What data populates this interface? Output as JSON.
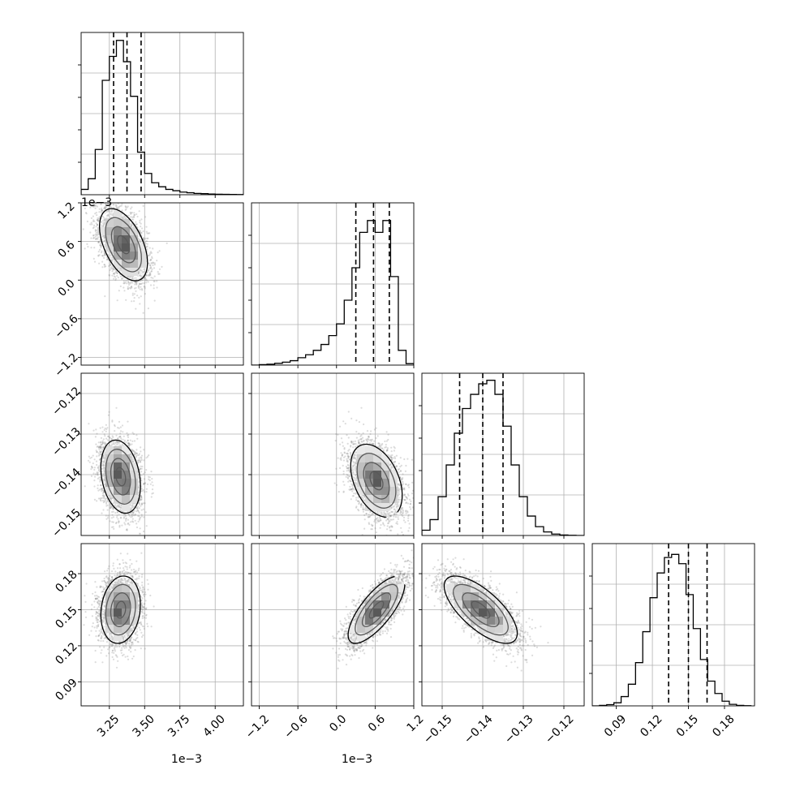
{
  "chart_data": {
    "type": "corner",
    "parameters": [
      {
        "range": [
          0.00305,
          0.0042
        ],
        "ticks": [
          0.00325,
          0.0035,
          0.00375,
          0.004
        ],
        "tick_labels": [
          "3.25",
          "3.50",
          "3.75",
          "4.00"
        ],
        "offset_label": "1e−3",
        "quantiles": [
          0.00328,
          0.003375,
          0.003475
        ],
        "hist_bin_edges": [
          0.00305,
          0.0031,
          0.00315,
          0.0032,
          0.00325,
          0.0033,
          0.00335,
          0.0034,
          0.00345,
          0.0035,
          0.00355,
          0.0036,
          0.00365,
          0.0037,
          0.00375,
          0.0038,
          0.00385,
          0.0039,
          0.00395,
          0.004,
          0.00405,
          0.0041,
          0.00415,
          0.0042
        ],
        "hist_values": [
          0.04,
          0.12,
          0.34,
          0.86,
          1.04,
          1.16,
          1.0,
          0.74,
          0.32,
          0.16,
          0.09,
          0.06,
          0.04,
          0.03,
          0.02,
          0.015,
          0.01,
          0.008,
          0.005,
          0.004,
          0.003,
          0.002,
          0.001
        ],
        "hist_ylim": [
          0,
          1.22
        ]
      },
      {
        "range": [
          -0.00132,
          0.0012
        ],
        "ticks": [
          -0.0012,
          -0.0006,
          0.0,
          0.0006,
          0.0012
        ],
        "tick_labels": [
          "−1.2",
          "−0.6",
          "0.0",
          "0.6",
          "1.2"
        ],
        "offset_label": "1e−3",
        "quantiles": [
          0.0003,
          0.000575,
          0.00082
        ],
        "hist_bin_edges": [
          -0.00132,
          -0.0012,
          -0.00108,
          -0.00096,
          -0.00084,
          -0.00072,
          -0.0006,
          -0.00048,
          -0.00036,
          -0.00024,
          -0.00012,
          0.0,
          0.00012,
          0.00024,
          0.00036,
          0.00048,
          0.0006,
          0.00072,
          0.00084,
          0.00096,
          0.00108,
          0.0012
        ],
        "hist_values": [
          0.0,
          0.003,
          0.006,
          0.012,
          0.02,
          0.03,
          0.05,
          0.07,
          0.1,
          0.14,
          0.2,
          0.28,
          0.44,
          0.66,
          0.9,
          0.98,
          0.9,
          0.98,
          0.6,
          0.1,
          0.01
        ],
        "hist_ylim": [
          0,
          1.1
        ]
      },
      {
        "range": [
          -0.155,
          -0.115
        ],
        "ticks": [
          -0.15,
          -0.14,
          -0.13,
          -0.12
        ],
        "tick_labels": [
          "−0.15",
          "−0.14",
          "−0.13",
          "−0.12"
        ],
        "offset_label": "",
        "quantiles": [
          -0.1457,
          -0.14,
          -0.135
        ],
        "hist_bin_edges": [
          -0.155,
          -0.153,
          -0.151,
          -0.149,
          -0.147,
          -0.145,
          -0.143,
          -0.141,
          -0.139,
          -0.137,
          -0.135,
          -0.133,
          -0.131,
          -0.129,
          -0.127,
          -0.125,
          -0.123,
          -0.121,
          -0.119,
          -0.117,
          -0.115
        ],
        "hist_values": [
          0.03,
          0.09,
          0.22,
          0.4,
          0.58,
          0.72,
          0.8,
          0.86,
          0.88,
          0.8,
          0.62,
          0.4,
          0.22,
          0.11,
          0.05,
          0.02,
          0.008,
          0.003,
          0.001,
          0.0
        ],
        "hist_ylim": [
          0,
          0.92
        ]
      },
      {
        "range": [
          0.07,
          0.205
        ],
        "ticks": [
          0.09,
          0.12,
          0.15,
          0.18
        ],
        "tick_labels": [
          "0.09",
          "0.12",
          "0.15",
          "0.18"
        ],
        "offset_label": "",
        "quantiles": [
          0.1335,
          0.15,
          0.1655
        ],
        "hist_bin_edges": [
          0.07,
          0.076,
          0.082,
          0.088,
          0.094,
          0.1,
          0.106,
          0.112,
          0.118,
          0.124,
          0.13,
          0.136,
          0.142,
          0.148,
          0.154,
          0.16,
          0.166,
          0.172,
          0.178,
          0.184,
          0.19,
          0.196,
          0.202
        ],
        "hist_values": [
          0.0,
          0.003,
          0.008,
          0.02,
          0.06,
          0.14,
          0.28,
          0.48,
          0.7,
          0.86,
          0.96,
          0.98,
          0.92,
          0.72,
          0.5,
          0.3,
          0.16,
          0.08,
          0.03,
          0.01,
          0.003,
          0.001
        ],
        "hist_ylim": [
          0,
          1.05
        ]
      }
    ],
    "pair_distributions": [
      {
        "x_param": 0,
        "y_param": 1,
        "mean": [
          0.00335,
          0.00055
        ],
        "std": [
          8.5e-05,
          0.00028
        ],
        "corr": -0.5
      },
      {
        "x_param": 0,
        "y_param": 2,
        "mean": [
          0.00333,
          -0.1405
        ],
        "std": [
          7e-05,
          0.0045
        ],
        "corr": -0.25
      },
      {
        "x_param": 1,
        "y_param": 2,
        "mean": [
          0.00062,
          -0.1415
        ],
        "std": [
          0.0002,
          0.0045
        ],
        "corr": -0.4
      },
      {
        "x_param": 0,
        "y_param": 3,
        "mean": [
          0.00333,
          0.15
        ],
        "std": [
          7e-05,
          0.014
        ],
        "corr": 0.15
      },
      {
        "x_param": 1,
        "y_param": 3,
        "mean": [
          0.00062,
          0.15
        ],
        "std": [
          0.00022,
          0.014
        ],
        "corr": 0.75
      },
      {
        "x_param": 2,
        "y_param": 3,
        "mean": [
          -0.1405,
          0.15
        ],
        "std": [
          0.0045,
          0.014
        ],
        "corr": -0.7
      }
    ],
    "grid": true,
    "legend": "none",
    "title": ""
  }
}
